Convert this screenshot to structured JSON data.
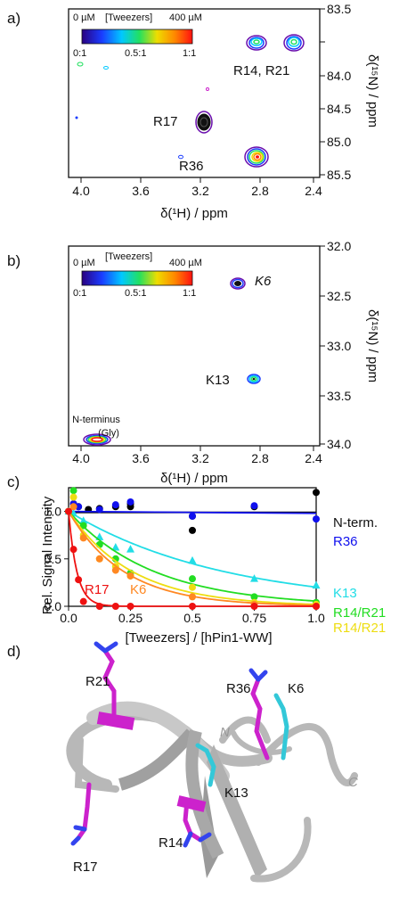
{
  "panels": {
    "a": {
      "letter": "a)",
      "x_label": "δ(¹H) / ppm",
      "y_label": "δ(¹⁵N) / ppm",
      "x_ticks": [
        "4.0",
        "3.6",
        "3.2",
        "2.8",
        "2.4"
      ],
      "y_ticks": [
        "83.5",
        "84.0",
        "84.5",
        "85.0",
        "85.5"
      ],
      "colorbar": {
        "left_label": "0 µM",
        "title": "[Tweezers]",
        "right_label": "400 µM",
        "ratio_labels": [
          "0:1",
          "0.5:1",
          "1:1"
        ]
      },
      "peak_labels": [
        "R14, R21",
        "R17",
        "R36"
      ]
    },
    "b": {
      "letter": "b)",
      "x_label": "δ(¹H) / ppm",
      "y_label": "δ(¹⁵N) / ppm",
      "x_ticks": [
        "4.0",
        "3.6",
        "3.2",
        "2.8",
        "2.4"
      ],
      "y_ticks": [
        "32.0",
        "32.5",
        "33.0",
        "33.5",
        "34.0"
      ],
      "colorbar": {
        "left_label": "0 µM",
        "title": "[Tweezers]",
        "right_label": "400 µM",
        "ratio_labels": [
          "0:1",
          "0.5:1",
          "1:1"
        ]
      },
      "peak_labels": [
        "K6",
        "K13",
        "N-terminus",
        "(Gly)"
      ]
    },
    "c": {
      "letter": "c)",
      "x_label": "[Tweezers] / [hPin1-WW]",
      "y_label": "Rel. Signal Intensity",
      "inline_labels": [
        "R17",
        "K6"
      ]
    },
    "d": {
      "letter": "d)",
      "residue_labels": [
        "R21",
        "R36",
        "K6",
        "N",
        "K13",
        "C",
        "R17",
        "R14"
      ]
    }
  },
  "chart_data": [
    {
      "type": "line",
      "panel": "c",
      "xlabel": "[Tweezers] / [hPin1-WW]",
      "ylabel": "Rel. Signal Intensity",
      "xlim": [
        0,
        1.0
      ],
      "ylim": [
        0,
        1.25
      ],
      "x_ticks": [
        0.0,
        0.25,
        0.5,
        0.75,
        1.0
      ],
      "y_ticks": [
        0.0,
        0.5,
        1.0
      ],
      "series": [
        {
          "name": "N-term.",
          "color": "#000000",
          "marker": "circle",
          "x": [
            0.0,
            0.02,
            0.04,
            0.08,
            0.125,
            0.19,
            0.25,
            0.25,
            0.5,
            0.5,
            0.75,
            1.0
          ],
          "y": [
            1.0,
            1.08,
            1.05,
            1.02,
            1.03,
            1.05,
            1.05,
            1.08,
            0.8,
            0.95,
            1.05,
            1.2
          ],
          "fit": [
            [
              0,
              0.99
            ],
            [
              1.0,
              0.99
            ]
          ]
        },
        {
          "name": "R36",
          "color": "#1010ee",
          "marker": "circle",
          "x": [
            0.0,
            0.02,
            0.04,
            0.125,
            0.19,
            0.25,
            0.5,
            0.75,
            1.0
          ],
          "y": [
            1.0,
            1.08,
            1.05,
            1.02,
            1.07,
            1.1,
            0.95,
            1.06,
            0.92
          ],
          "fit": [
            [
              0,
              1.0
            ],
            [
              1.0,
              0.98
            ]
          ]
        },
        {
          "name": "K13",
          "color": "#22dde6",
          "marker": "triangle",
          "x": [
            0.0,
            0.02,
            0.06,
            0.125,
            0.19,
            0.25,
            0.5,
            0.75,
            1.0
          ],
          "y": [
            1.0,
            0.98,
            0.9,
            0.73,
            0.62,
            0.6,
            0.48,
            0.29,
            0.22
          ],
          "fit_k": 1.6
        },
        {
          "name": "R14/R21",
          "color": "#22dd22",
          "marker": "circle",
          "x": [
            0.0,
            0.02,
            0.06,
            0.125,
            0.19,
            0.25,
            0.5,
            0.75,
            1.0
          ],
          "y": [
            1.0,
            1.22,
            0.85,
            0.65,
            0.5,
            0.35,
            0.29,
            0.1,
            0.04
          ],
          "fit_k": 2.9
        },
        {
          "name": "R14/R21",
          "color": "#eedd11",
          "marker": "circle",
          "x": [
            0.0,
            0.02,
            0.06,
            0.125,
            0.19,
            0.25,
            0.5,
            0.75,
            1.0
          ],
          "y": [
            1.0,
            1.15,
            0.75,
            0.5,
            0.42,
            0.32,
            0.2,
            0.04,
            0.02
          ],
          "fit_k": 3.9
        },
        {
          "name": "K6",
          "color": "#ff8822",
          "marker": "circle",
          "x": [
            0.0,
            0.02,
            0.06,
            0.125,
            0.19,
            0.25,
            0.5,
            0.75,
            1.0
          ],
          "y": [
            1.0,
            1.05,
            0.72,
            0.5,
            0.38,
            0.32,
            0.1,
            0.02,
            0.0
          ],
          "fit_k": 4.5
        },
        {
          "name": "R17",
          "color": "#ee1111",
          "marker": "circle",
          "x": [
            0.0,
            0.02,
            0.04,
            0.06,
            0.125,
            0.19,
            0.25,
            0.5,
            0.75,
            1.0
          ],
          "y": [
            1.0,
            0.6,
            0.28,
            0.05,
            0.0,
            0.0,
            0.0,
            0.0,
            0.0,
            0.0
          ],
          "fit_k": 30
        }
      ]
    }
  ],
  "colors": {
    "rainbow": [
      "#2a0080",
      "#1a3cff",
      "#00c8ff",
      "#22e060",
      "#eedd00",
      "#ff8800",
      "#ff1010"
    ],
    "arginine": "#cc22cc",
    "lysine": "#33c8d8",
    "ribbon": "#b8b8b8"
  }
}
